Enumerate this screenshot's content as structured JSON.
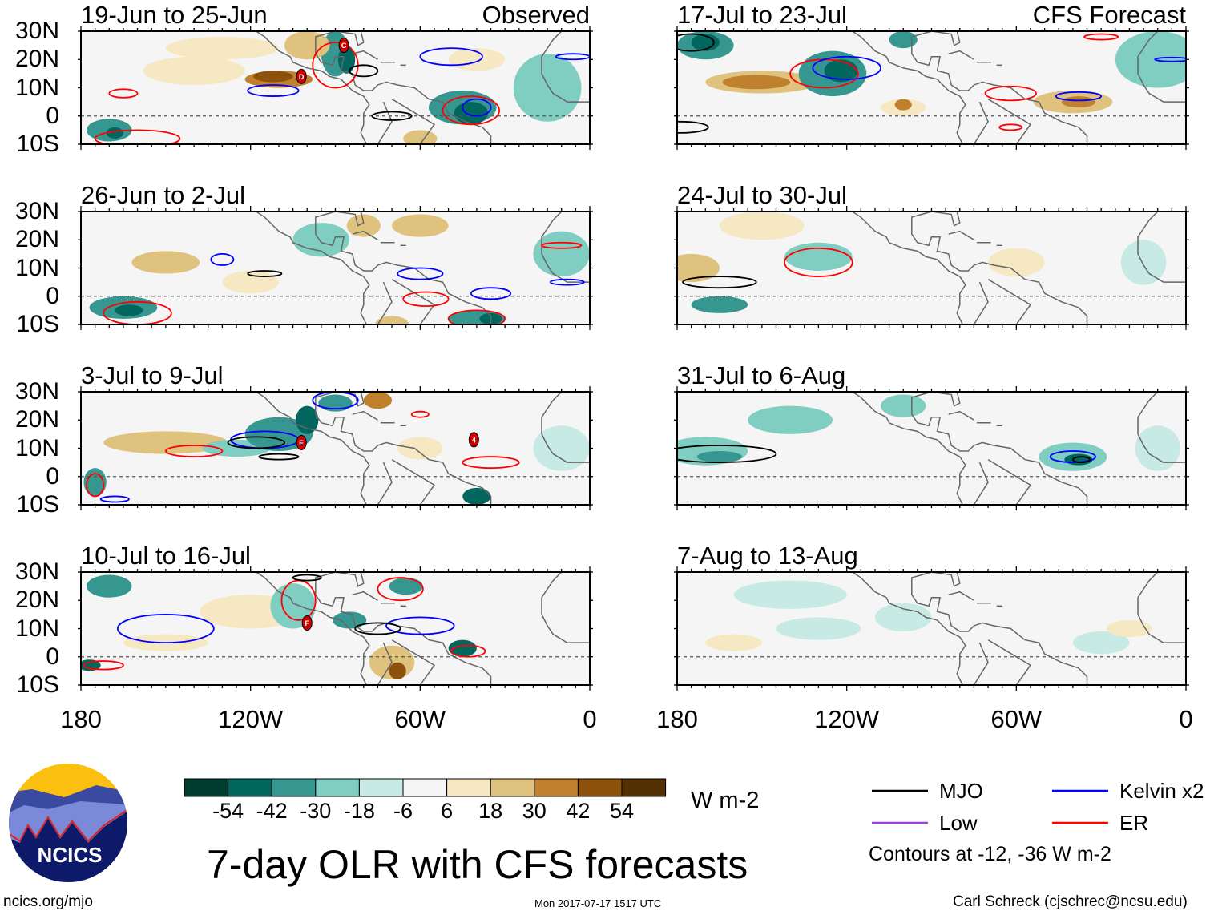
{
  "chart_data": {
    "type": "heatmap",
    "title": "7-day OLR with CFS forecasts",
    "units": "W m-2",
    "lat_ticks": [
      "30N",
      "20N",
      "10N",
      "0",
      "10S"
    ],
    "lon_ticks": [
      "180",
      "120W",
      "60W",
      "0"
    ],
    "colorbar": {
      "levels": [
        -54,
        -42,
        -30,
        -18,
        -6,
        6,
        18,
        30,
        42,
        54
      ],
      "labels": [
        "-54",
        "-42",
        "-30",
        "-18",
        "-6",
        "6",
        "18",
        "30",
        "42",
        "54"
      ],
      "colors": [
        "#003c30",
        "#01665e",
        "#35978f",
        "#80cdc1",
        "#c7eae5",
        "#f5f5f5",
        "#f6e8c3",
        "#dfc27d",
        "#bf812d",
        "#8c510a",
        "#543005"
      ]
    },
    "legend": {
      "items": [
        {
          "label": "MJO",
          "color": "#000000"
        },
        {
          "label": "Kelvin x2",
          "color": "#0000ff"
        },
        {
          "label": "Low",
          "color": "#a040e0"
        },
        {
          "label": "ER",
          "color": "#ff0000"
        }
      ],
      "note": "Contours at -12, -36 W m-2"
    },
    "panels": [
      {
        "title": "19-Jun to 25-Jun",
        "tag": "Observed",
        "blobs": [
          [
            130,
            24,
            20,
            4,
            10
          ],
          [
            140,
            16,
            18,
            5,
            10
          ],
          [
            110,
            13,
            12,
            3,
            35
          ],
          [
            112,
            14,
            7,
            2,
            45
          ],
          [
            90,
            22,
            5,
            8,
            -35
          ],
          [
            86,
            20,
            3,
            5,
            -50
          ],
          [
            100,
            25,
            8,
            5,
            25
          ],
          [
            45,
            3,
            12,
            6,
            -30
          ],
          [
            42,
            1,
            6,
            4,
            -50
          ],
          [
            170,
            -5,
            8,
            4,
            -30
          ],
          [
            168,
            -6,
            3,
            2,
            -50
          ],
          [
            60,
            -8,
            6,
            3,
            20
          ],
          [
            15,
            10,
            12,
            12,
            -20
          ],
          [
            40,
            20,
            10,
            4,
            12
          ]
        ],
        "contours": [
          [
            90,
            18,
            8,
            8,
            "er"
          ],
          [
            165,
            8,
            5,
            1.5,
            "er"
          ],
          [
            112,
            9,
            9,
            2,
            "kel"
          ],
          [
            49,
            21,
            11,
            3,
            "kel"
          ],
          [
            42,
            2,
            10,
            5,
            "er"
          ],
          [
            40,
            3,
            5,
            3,
            "kel"
          ],
          [
            80,
            16,
            5,
            2,
            "mjo"
          ],
          [
            70,
            0,
            7,
            1.5,
            "mjo"
          ],
          [
            160,
            -8,
            15,
            3,
            "er"
          ],
          [
            6,
            21,
            6,
            1,
            "kel"
          ]
        ],
        "storms": [
          {
            "label": "C",
            "lon": 87,
            "lat": 25
          },
          {
            "label": "D",
            "lon": 102,
            "lat": 14
          }
        ]
      },
      {
        "title": "17-Jul to 23-Jul",
        "tag": "CFS Forecast",
        "blobs": [
          [
            150,
            12,
            20,
            4,
            20
          ],
          [
            152,
            12,
            12,
            2.5,
            38
          ],
          [
            125,
            15,
            12,
            8,
            -30
          ],
          [
            122,
            16,
            6,
            4,
            -50
          ],
          [
            40,
            5,
            14,
            4,
            20
          ],
          [
            38,
            5,
            6,
            2,
            35
          ],
          [
            170,
            25,
            10,
            5,
            -30
          ],
          [
            170,
            26,
            5,
            3,
            -50
          ],
          [
            100,
            27,
            5,
            3,
            -40
          ],
          [
            10,
            20,
            15,
            10,
            -20
          ],
          [
            100,
            3,
            8,
            3,
            18
          ],
          [
            100,
            4,
            3,
            2,
            35
          ]
        ],
        "contours": [
          [
            128,
            15,
            12,
            5,
            "er"
          ],
          [
            120,
            17,
            12,
            4,
            "kel"
          ],
          [
            175,
            26,
            8,
            3,
            "mjo"
          ],
          [
            62,
            8,
            9,
            2.5,
            "er"
          ],
          [
            38,
            7,
            8,
            1.5,
            "kel"
          ],
          [
            179,
            -4,
            10,
            2,
            "mjo"
          ],
          [
            62,
            -4,
            4,
            1,
            "er"
          ],
          [
            30,
            28,
            6,
            1,
            "er"
          ],
          [
            5,
            20,
            6,
            0.7,
            "kel"
          ]
        ],
        "storms": []
      },
      {
        "title": "26-Jun to 2-Jul",
        "tag": "",
        "blobs": [
          [
            150,
            12,
            12,
            4,
            22
          ],
          [
            120,
            5,
            10,
            4,
            12
          ],
          [
            165,
            -4,
            12,
            4,
            -30
          ],
          [
            163,
            -5,
            5,
            2,
            -50
          ],
          [
            95,
            20,
            10,
            6,
            -25
          ],
          [
            80,
            25,
            6,
            4,
            25
          ],
          [
            60,
            25,
            10,
            4,
            20
          ],
          [
            40,
            -8,
            10,
            3,
            -30
          ],
          [
            35,
            -8,
            4,
            2,
            -50
          ],
          [
            10,
            15,
            10,
            8,
            -25
          ],
          [
            70,
            -10,
            6,
            3,
            20
          ]
        ],
        "contours": [
          [
            160,
            -6,
            12,
            4,
            "er"
          ],
          [
            130,
            13,
            4,
            2,
            "kel"
          ],
          [
            115,
            8,
            6,
            1,
            "mjo"
          ],
          [
            60,
            8,
            8,
            2,
            "kel"
          ],
          [
            58,
            -1,
            8,
            2.5,
            "er"
          ],
          [
            35,
            1,
            7,
            2,
            "kel"
          ],
          [
            40,
            -8,
            10,
            3,
            "er"
          ],
          [
            8,
            5,
            6,
            1,
            "kel"
          ],
          [
            10,
            18,
            7,
            1,
            "er"
          ]
        ],
        "storms": []
      },
      {
        "title": "24-Jul to 30-Jul",
        "tag": "",
        "blobs": [
          [
            175,
            10,
            10,
            5,
            20
          ],
          [
            165,
            -3,
            10,
            3,
            -30
          ],
          [
            130,
            14,
            12,
            5,
            -20
          ],
          [
            150,
            25,
            15,
            5,
            10
          ],
          [
            60,
            12,
            10,
            5,
            10
          ],
          [
            15,
            12,
            8,
            8,
            -15
          ]
        ],
        "contours": [
          [
            130,
            12,
            12,
            5,
            "er"
          ],
          [
            165,
            5,
            13,
            2,
            "mjo"
          ]
        ],
        "storms": []
      },
      {
        "title": "3-Jul to 9-Jul",
        "tag": "",
        "blobs": [
          [
            150,
            12,
            22,
            4,
            25
          ],
          [
            125,
            10,
            12,
            3,
            -25
          ],
          [
            110,
            15,
            12,
            6,
            -30
          ],
          [
            100,
            20,
            4,
            5,
            -45
          ],
          [
            90,
            26,
            6,
            3,
            -40
          ],
          [
            75,
            27,
            5,
            3,
            35
          ],
          [
            40,
            -7,
            5,
            3,
            -45
          ],
          [
            10,
            10,
            10,
            8,
            -15
          ],
          [
            175,
            -2,
            4,
            5,
            -35
          ],
          [
            60,
            10,
            8,
            4,
            15
          ]
        ],
        "contours": [
          [
            115,
            13,
            12,
            3,
            "kel"
          ],
          [
            118,
            12,
            10,
            2,
            "mjo"
          ],
          [
            140,
            9,
            10,
            2,
            "er"
          ],
          [
            110,
            7,
            7,
            1,
            "mjo"
          ],
          [
            90,
            27,
            8,
            3,
            "kel"
          ],
          [
            35,
            5,
            10,
            2,
            "er"
          ],
          [
            175,
            -3,
            3,
            4,
            "er"
          ],
          [
            60,
            22,
            3,
            1,
            "er"
          ],
          [
            168,
            -8,
            5,
            1,
            "kel"
          ]
        ],
        "storms": [
          {
            "label": "E",
            "lon": 102,
            "lat": 12
          },
          {
            "label": "4",
            "lon": 41,
            "lat": 13
          }
        ]
      },
      {
        "title": "31-Jul to 6-Aug",
        "tag": "",
        "blobs": [
          [
            170,
            9,
            15,
            5,
            -25
          ],
          [
            165,
            7,
            8,
            2,
            -40
          ],
          [
            140,
            20,
            15,
            5,
            -18
          ],
          [
            40,
            7,
            12,
            5,
            -25
          ],
          [
            38,
            6,
            5,
            2,
            -45
          ],
          [
            10,
            10,
            8,
            8,
            -15
          ],
          [
            100,
            25,
            8,
            4,
            -18
          ]
        ],
        "contours": [
          [
            165,
            8,
            20,
            3,
            "mjo"
          ],
          [
            40,
            7,
            8,
            2,
            "kel"
          ],
          [
            37,
            6,
            3,
            1,
            "mjo"
          ]
        ],
        "storms": []
      },
      {
        "title": "10-Jul to 16-Jul",
        "tag": "",
        "blobs": [
          [
            170,
            25,
            8,
            4,
            -30
          ],
          [
            120,
            16,
            18,
            6,
            12
          ],
          [
            105,
            18,
            8,
            8,
            -25
          ],
          [
            85,
            13,
            6,
            3,
            -30
          ],
          [
            70,
            -2,
            8,
            6,
            25
          ],
          [
            68,
            -5,
            3,
            3,
            45
          ],
          [
            65,
            25,
            6,
            3,
            -40
          ],
          [
            45,
            3,
            5,
            3,
            -45
          ],
          [
            177,
            -3,
            4,
            2,
            -50
          ],
          [
            150,
            5,
            15,
            3,
            15
          ]
        ],
        "contours": [
          [
            150,
            10,
            17,
            5,
            "kel"
          ],
          [
            103,
            20,
            6,
            7,
            "er"
          ],
          [
            67,
            24,
            8,
            4,
            "er"
          ],
          [
            60,
            11,
            12,
            3,
            "kel"
          ],
          [
            75,
            10,
            8,
            2,
            "mjo"
          ],
          [
            43,
            2,
            6,
            2,
            "er"
          ],
          [
            172,
            -3,
            7,
            1.5,
            "er"
          ],
          [
            100,
            28,
            5,
            1,
            "mjo"
          ]
        ],
        "storms": [
          {
            "label": "F",
            "lon": 100,
            "lat": 12
          }
        ]
      },
      {
        "title": "7-Aug to 13-Aug",
        "tag": "",
        "blobs": [
          [
            130,
            10,
            15,
            4,
            -15
          ],
          [
            160,
            5,
            10,
            3,
            12
          ],
          [
            100,
            14,
            10,
            5,
            -12
          ],
          [
            30,
            5,
            10,
            4,
            -15
          ],
          [
            20,
            10,
            8,
            3,
            10
          ],
          [
            140,
            22,
            20,
            5,
            -10
          ]
        ],
        "contours": [],
        "storms": []
      }
    ]
  },
  "footer": {
    "site": "ncics.org/mjo",
    "timestamp": "Mon 2017-07-17 1517 UTC",
    "author": "Carl Schreck (cjschrec@ncsu.edu)",
    "logo_text": "NCICS"
  }
}
